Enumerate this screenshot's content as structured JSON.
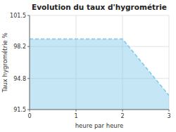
{
  "chart_data": {
    "type": "area",
    "title": "Evolution du taux d'hygrométrie",
    "xlabel": "heure par heure",
    "ylabel": "Taux hygrométrie %",
    "x": [
      0,
      2,
      3
    ],
    "values": [
      99.0,
      99.0,
      93.0
    ],
    "color": "#7cc8e8",
    "line_style": "dashed",
    "xlim": [
      0,
      3
    ],
    "ylim": [
      91.5,
      101.5
    ],
    "xticks": [
      0,
      1,
      2,
      3
    ],
    "yticks": [
      91.5,
      94.8,
      98.2,
      101.5
    ],
    "grid": true
  }
}
